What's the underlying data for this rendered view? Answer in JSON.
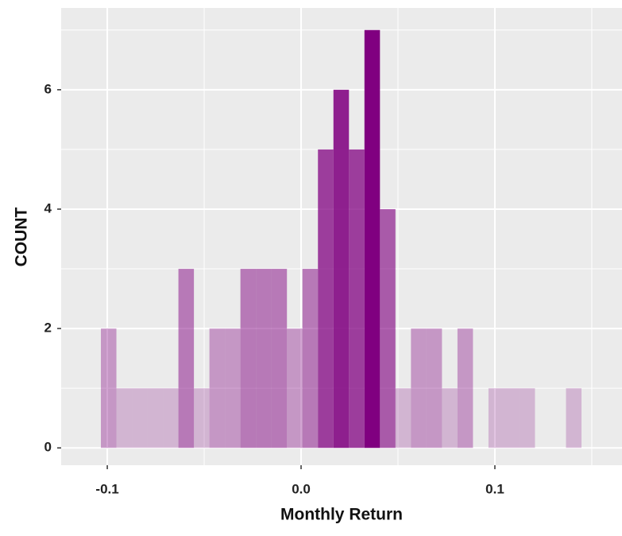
{
  "chart_data": {
    "type": "histogram",
    "x_label": "Monthly Return",
    "y_label": "COUNT",
    "bins": [
      -0.1033,
      -0.0953,
      -0.0873,
      -0.0793,
      -0.0713,
      -0.0633,
      -0.0553,
      -0.0473,
      -0.0393,
      -0.0313,
      -0.0233,
      -0.0153,
      -0.0073,
      0.0007,
      0.0087,
      0.0167,
      0.0247,
      0.0327,
      0.0407,
      0.0487,
      0.0567,
      0.0647,
      0.0727,
      0.0807,
      0.0887,
      0.0967,
      0.1047,
      0.1127,
      0.1207,
      0.1287,
      0.1367,
      0.1447
    ],
    "values": [
      2,
      1,
      1,
      1,
      1,
      3,
      1,
      2,
      2,
      3,
      3,
      3,
      2,
      3,
      5,
      6,
      5,
      7,
      4,
      1,
      2,
      2,
      1,
      2,
      0,
      1,
      1,
      1,
      0,
      0,
      1
    ],
    "color": "#800080",
    "xlim": [
      -0.1238,
      0.1656
    ],
    "xticks": [
      {
        "value": -0.1,
        "label": "-0.1"
      },
      {
        "value": 0,
        "label": "0.0"
      },
      {
        "value": 0.1,
        "label": "0.1"
      }
    ],
    "ylim": [
      -0.29,
      7.37
    ],
    "yticks": [
      0,
      2,
      4,
      6
    ],
    "grid": true
  }
}
